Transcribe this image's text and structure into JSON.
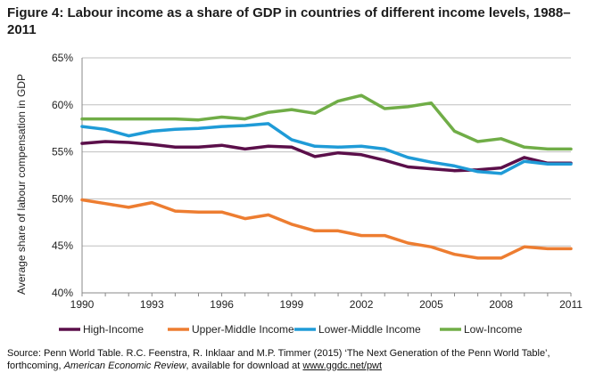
{
  "title": "Figure 4: Labour income as a share of GDP in countries of different income levels, 1988–2011",
  "source": {
    "prefix": "Source: Penn World Table. R.C. Feenstra, R. Inklaar and M.P. Timmer (2015) ‘The Next Generation of the Penn World Table’, forthcoming, ",
    "journal": "American Economic Review",
    "middle": ", available for download at ",
    "link": "www.ggdc.net/pwt"
  },
  "chart_data": {
    "type": "line",
    "title": "Figure 4: Labour income as a share of GDP in countries of different income levels, 1988–2011",
    "xlabel": "",
    "ylabel": "Average share of labour compensation in GDP",
    "xlim": [
      1990,
      2011
    ],
    "ylim": [
      40,
      65
    ],
    "x_ticks": [
      1990,
      1993,
      1996,
      1999,
      2002,
      2005,
      2008,
      2011
    ],
    "y_ticks": [
      40,
      45,
      50,
      55,
      60,
      65
    ],
    "y_tick_labels": [
      "40%",
      "45%",
      "50%",
      "55%",
      "60%",
      "65%"
    ],
    "grid": "horizontal",
    "legend_position": "bottom",
    "x": [
      1990,
      1991,
      1992,
      1993,
      1994,
      1995,
      1996,
      1997,
      1998,
      1999,
      2000,
      2001,
      2002,
      2003,
      2004,
      2005,
      2006,
      2007,
      2008,
      2009,
      2010,
      2011
    ],
    "series": [
      {
        "name": "High-Income",
        "color": "#5b0f4a",
        "values": [
          55.9,
          56.1,
          56.0,
          55.8,
          55.5,
          55.5,
          55.7,
          55.3,
          55.6,
          55.5,
          54.5,
          54.9,
          54.7,
          54.1,
          53.4,
          53.2,
          53.0,
          53.1,
          53.3,
          54.4,
          53.8,
          53.8
        ]
      },
      {
        "name": "Upper-Middle Income",
        "color": "#ed7d31",
        "values": [
          49.9,
          49.5,
          49.1,
          49.6,
          48.7,
          48.6,
          48.6,
          47.9,
          48.3,
          47.3,
          46.6,
          46.6,
          46.1,
          46.1,
          45.3,
          44.9,
          44.1,
          43.7,
          43.7,
          44.9,
          44.7,
          44.7
        ]
      },
      {
        "name": "Lower-Middle Income",
        "color": "#1f9bd7",
        "values": [
          57.7,
          57.4,
          56.7,
          57.2,
          57.4,
          57.5,
          57.7,
          57.8,
          58.0,
          56.3,
          55.6,
          55.5,
          55.6,
          55.3,
          54.4,
          53.9,
          53.5,
          52.9,
          52.7,
          54.0,
          53.7,
          53.7
        ]
      },
      {
        "name": "Low-Income",
        "color": "#70ad47",
        "values": [
          58.5,
          58.5,
          58.5,
          58.5,
          58.5,
          58.4,
          58.7,
          58.5,
          59.2,
          59.5,
          59.1,
          60.4,
          61.0,
          59.6,
          59.8,
          60.2,
          57.2,
          56.1,
          56.4,
          55.5,
          55.3,
          55.3
        ]
      }
    ]
  }
}
